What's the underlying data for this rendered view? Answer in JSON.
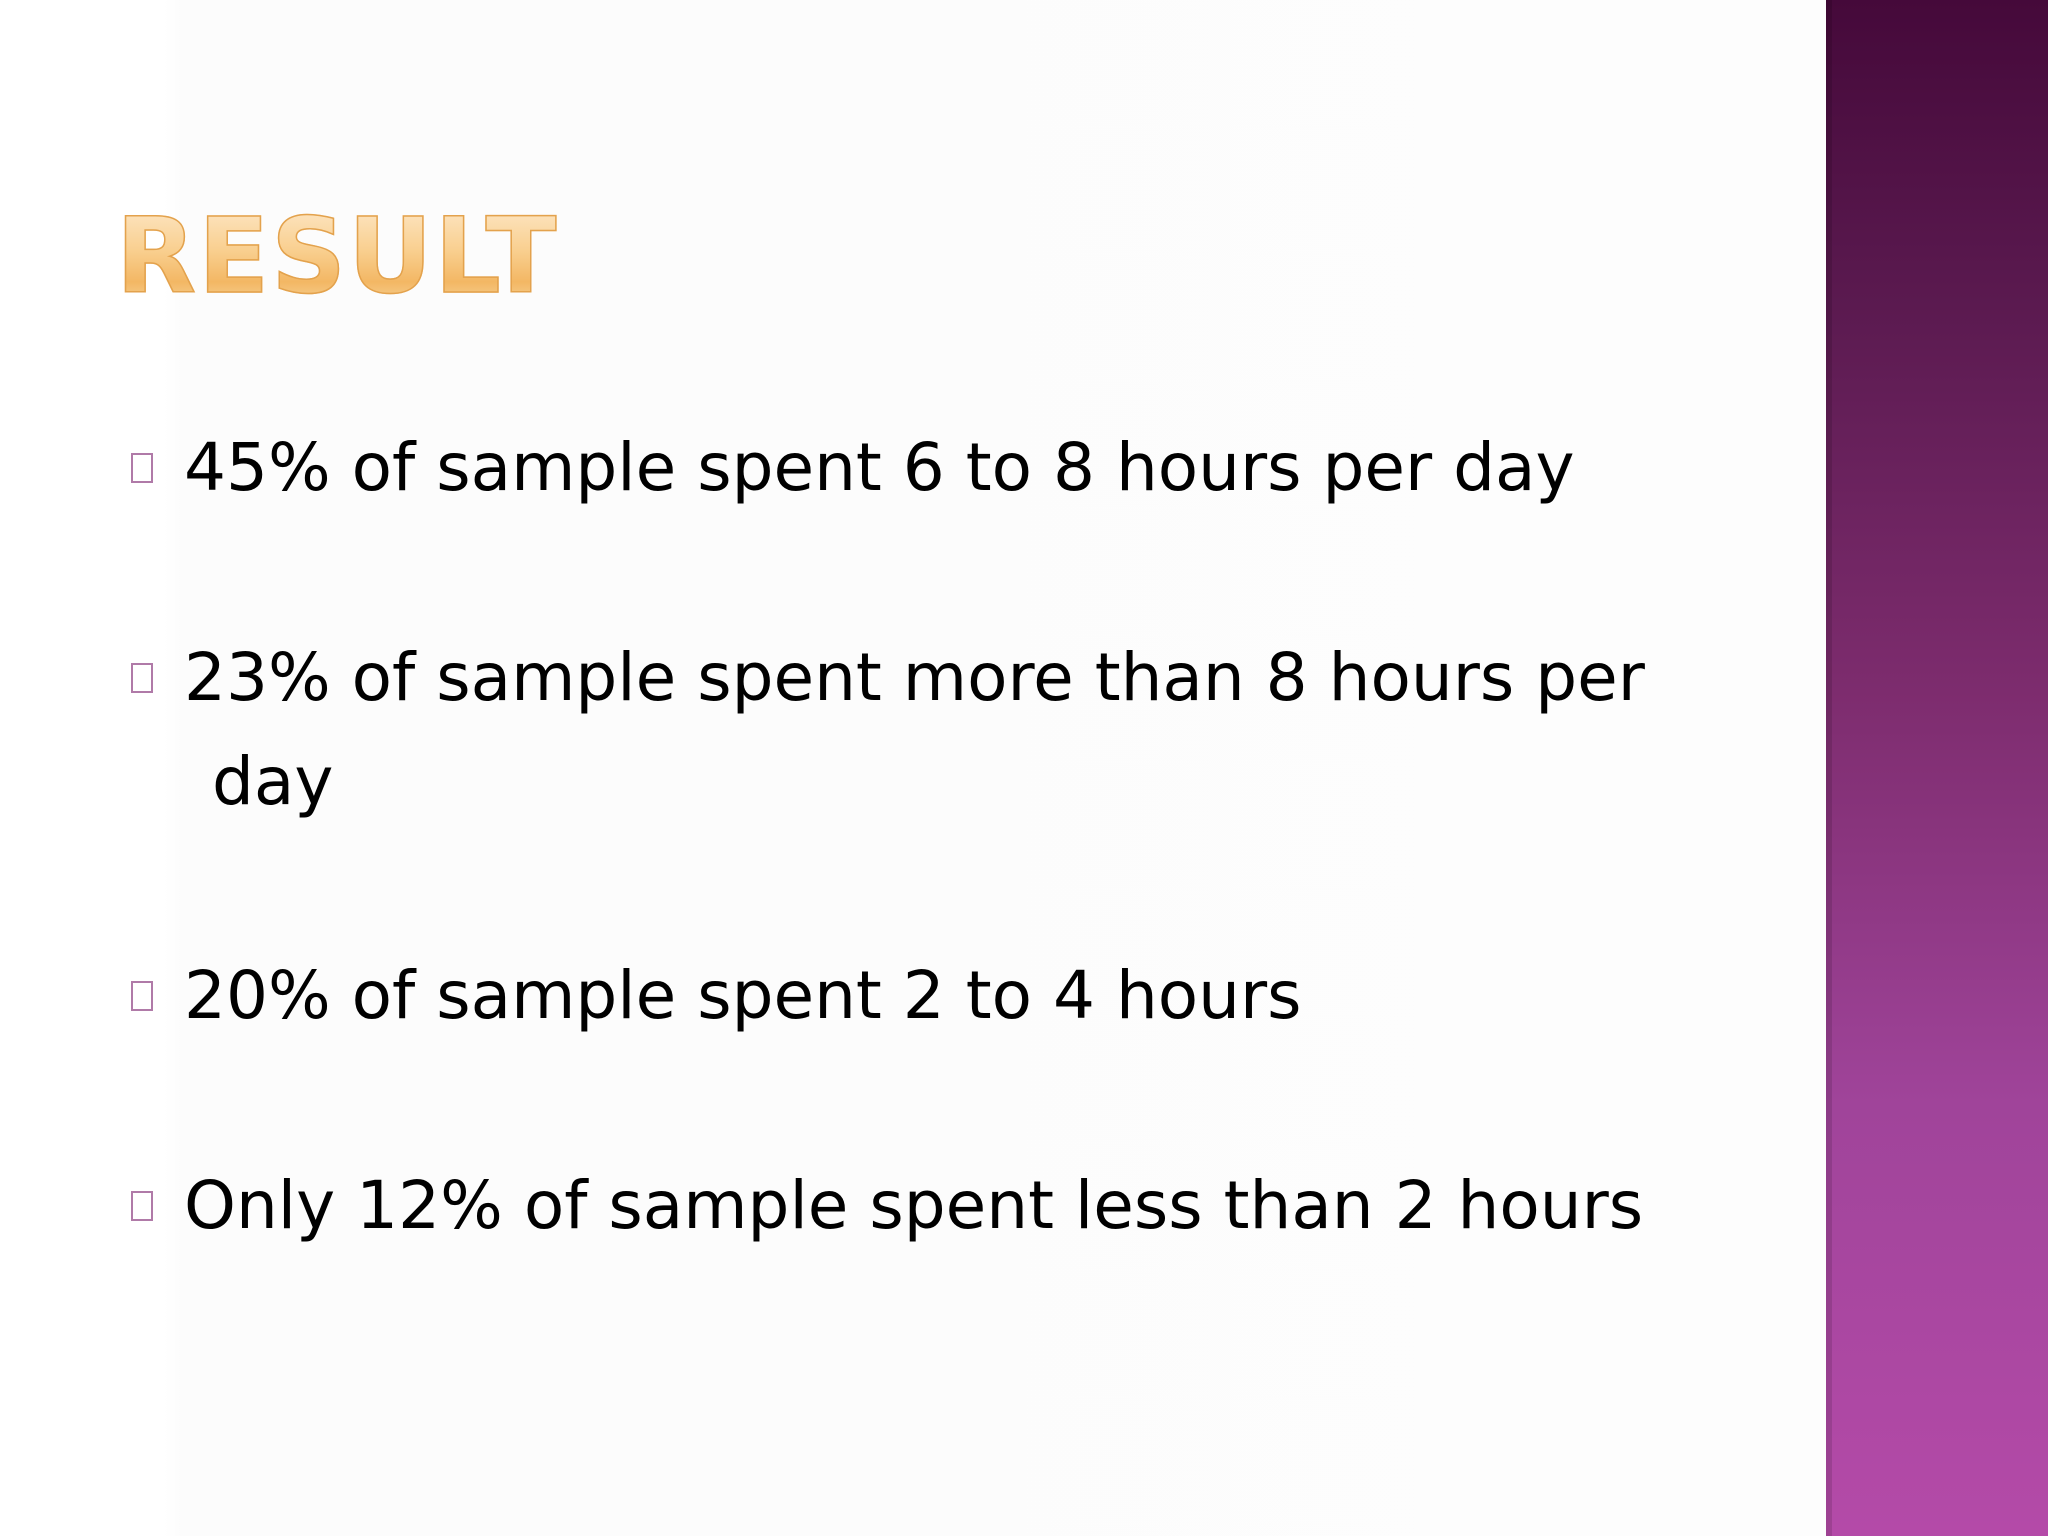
{
  "slide": {
    "title": "RESULT",
    "bullets": [
      "45% of sample spent 6 to 8 hours per day",
      "23% of sample spent more than 8 hours per day",
      "20% of sample spent 2 to 4 hours",
      "Only 12% of sample spent less than 2 hours"
    ]
  },
  "colors": {
    "title": "#f7c67e",
    "side_band_top": "#45093a",
    "side_band_bottom": "#b44aa8",
    "bullet_marker": "#b07aa8",
    "text": "#000000"
  }
}
